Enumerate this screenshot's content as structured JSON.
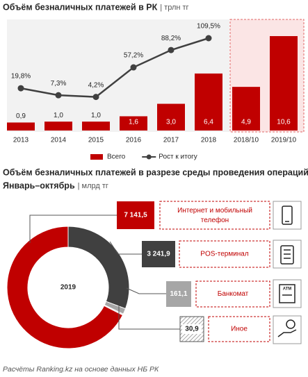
{
  "chart_data": [
    {
      "type": "bar",
      "title": "Объём безналичных платежей в РК",
      "unit": "| трлн тг",
      "categories": [
        "2013",
        "2014",
        "2015",
        "2016",
        "2017",
        "2018",
        "2018/10",
        "2019/10"
      ],
      "series": [
        {
          "name": "Всего",
          "color": "#c00000",
          "values": [
            0.9,
            1.0,
            1.0,
            1.6,
            3.0,
            6.4,
            4.9,
            10.6
          ],
          "value_labels": [
            "0,9",
            "1,0",
            "1,0",
            "1,6",
            "3,0",
            "6,4",
            "4,9",
            "10,6"
          ]
        },
        {
          "name": "Рост к итогу",
          "type": "line",
          "color": "#404040",
          "values": [
            19.8,
            7.3,
            4.2,
            57.2,
            88.2,
            109.5,
            null,
            null
          ],
          "value_labels": [
            "19,8%",
            "7,3%",
            "4,2%",
            "57,2%",
            "88,2%",
            "109,5%",
            null,
            null
          ]
        }
      ]
    },
    {
      "type": "pie",
      "title": "Объём безналичных платежей в разрезе среды проведения операций.",
      "subtitle": "Январь–октябрь",
      "unit": "| млрд тг",
      "center_label": "2019",
      "categories": [
        "Интернет и мобильный телефон",
        "POS-терминал",
        "Банкомат",
        "Иное"
      ],
      "values": [
        7141.5,
        3241.9,
        161.1,
        30.9
      ],
      "value_labels": [
        "7 141,5",
        "3 241,9",
        "161,1",
        "30,9"
      ],
      "colors": [
        "#c00000",
        "#404040",
        "#a6a6a6",
        "#d9d9d9"
      ]
    }
  ],
  "footer": "Расчёты Ranking.kz на основе данных НБ РК"
}
